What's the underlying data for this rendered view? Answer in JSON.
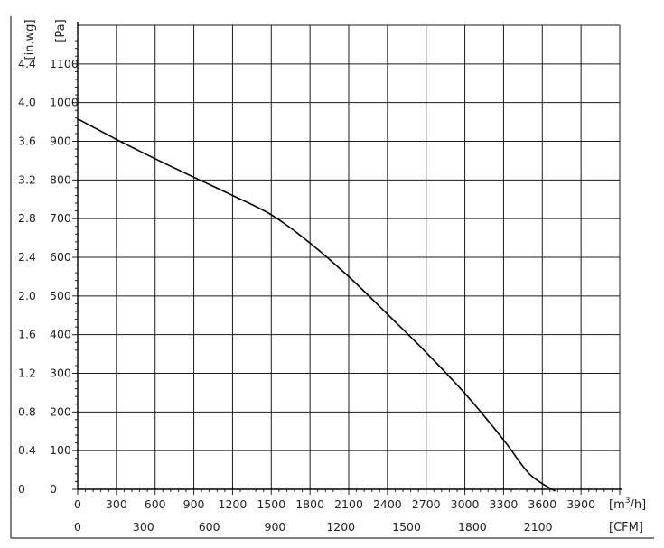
{
  "chart_data": {
    "type": "line",
    "title": "",
    "xlabel": "[m³/h]",
    "xlabel_base": "[m",
    "xlabel_sup": "3",
    "xlabel_tail": "/h]",
    "x2label": "[CFM]",
    "ylabel": "[Pa]",
    "y2label": "[in.wg]",
    "xlim": [
      0,
      4200
    ],
    "ylim": [
      0,
      1200
    ],
    "x_ticks": [
      0,
      300,
      600,
      900,
      1200,
      1500,
      1800,
      2100,
      2400,
      2700,
      3000,
      3300,
      3600,
      3900
    ],
    "x_tick_labels": [
      "0",
      "300",
      "600",
      "900",
      "1200",
      "1500",
      "1800",
      "2100",
      "2400",
      "2700",
      "3000",
      "3300",
      "3600",
      "3900"
    ],
    "x2_ticks": [
      0,
      300,
      600,
      900,
      1200,
      1500,
      1800,
      2100
    ],
    "x2_tick_labels": [
      "0",
      "300",
      "600",
      "900",
      "1200",
      "1500",
      "1800",
      "2100"
    ],
    "x2_per_x": 0.5886,
    "y_ticks": [
      0,
      100,
      200,
      300,
      400,
      500,
      600,
      700,
      800,
      900,
      1000,
      1100
    ],
    "y_tick_labels": [
      "0",
      "100",
      "200",
      "300",
      "400",
      "500",
      "600",
      "700",
      "800",
      "900",
      "1000",
      "1100"
    ],
    "y2_tick_labels": [
      "0",
      "0.4",
      "0.8",
      "1.2",
      "1.6",
      "2.0",
      "2.4",
      "2.8",
      "3.2",
      "3.6",
      "4.0",
      "4.4"
    ],
    "grid": true,
    "series": [
      {
        "name": "",
        "color": "#000000",
        "x": [
          0,
          300,
          600,
          900,
          1200,
          1500,
          1800,
          2100,
          2400,
          2700,
          3000,
          3300,
          3500,
          3700
        ],
        "y": [
          958,
          905,
          855,
          807,
          760,
          710,
          637,
          550,
          453,
          354,
          248,
          128,
          40,
          -5
        ]
      }
    ]
  }
}
